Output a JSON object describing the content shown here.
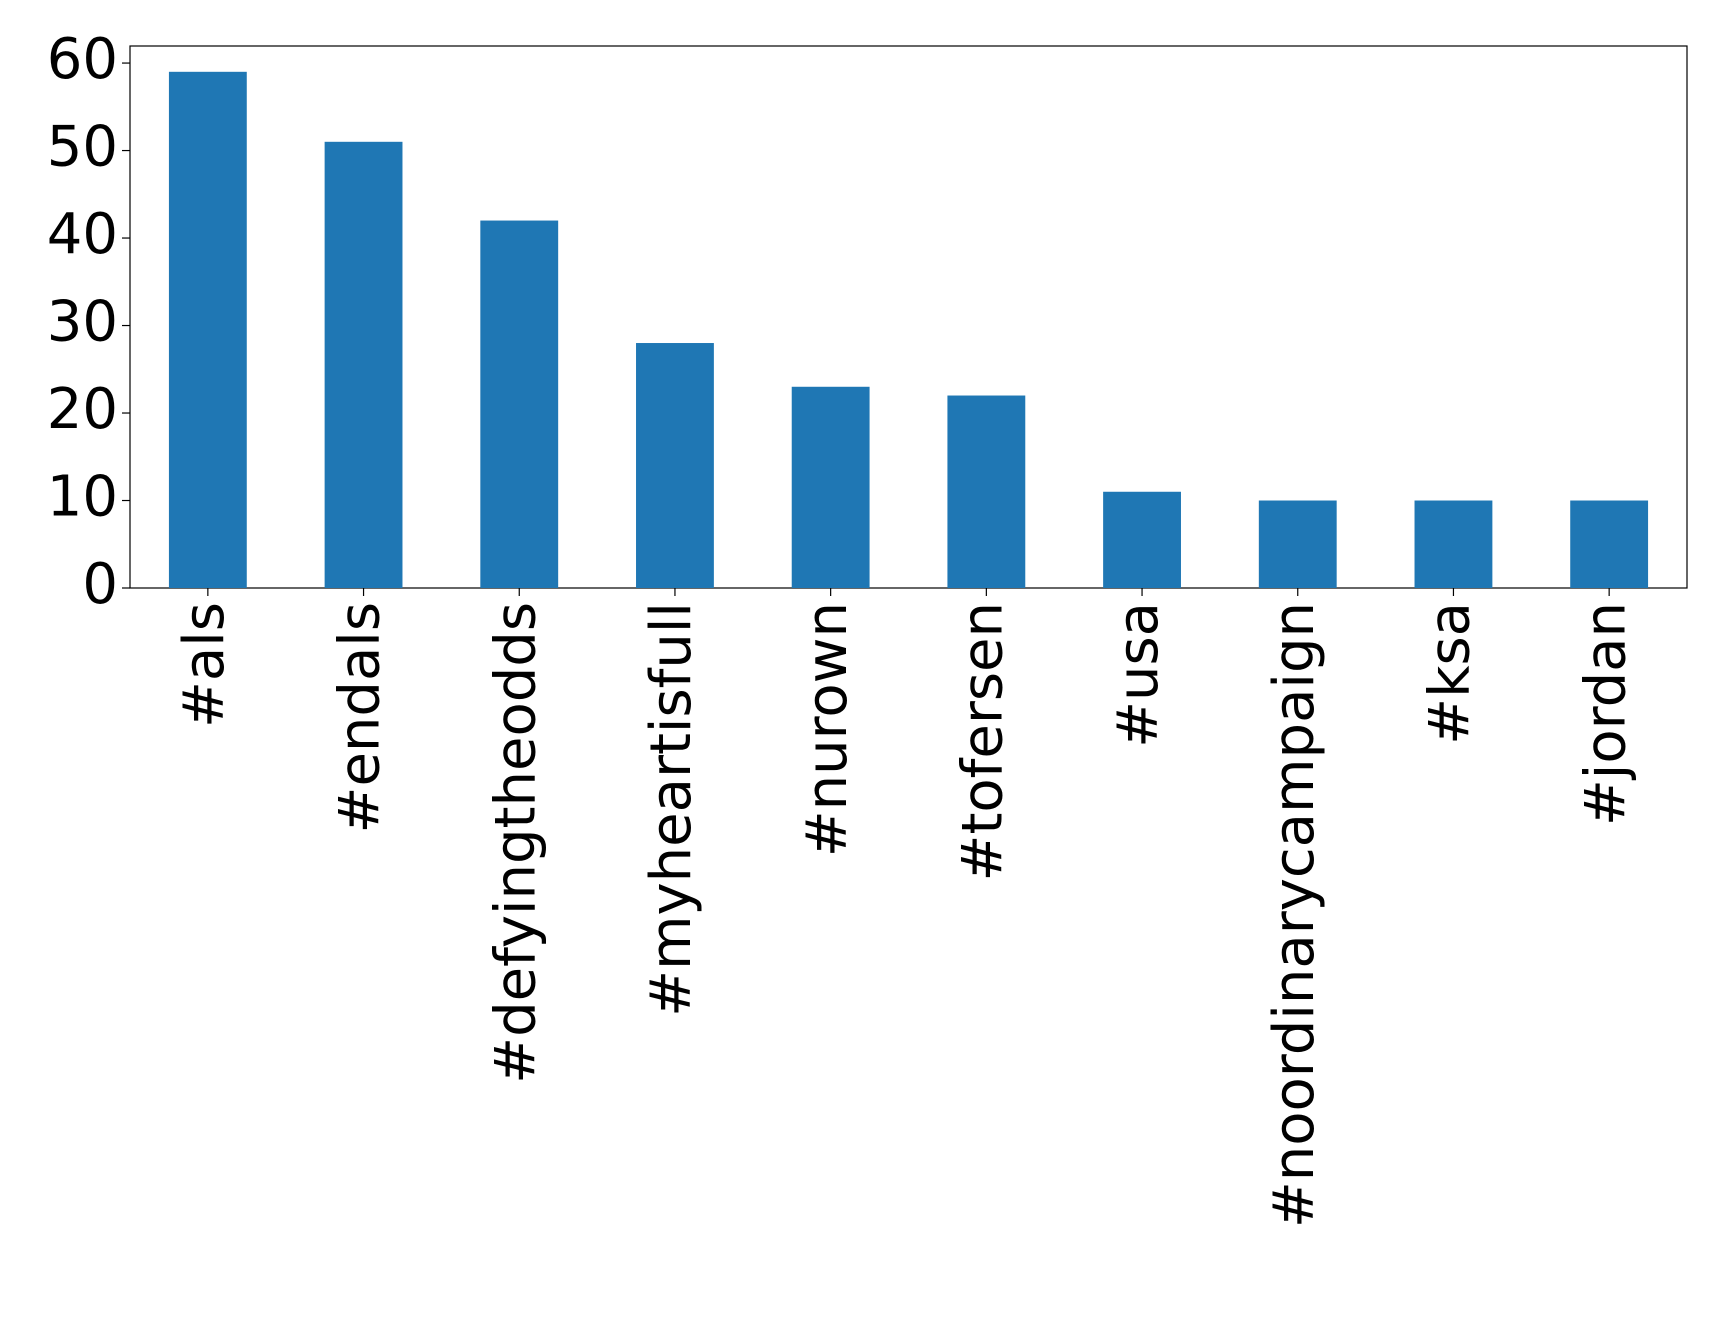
{
  "chart_data": {
    "type": "bar",
    "categories": [
      "#als",
      "#endals",
      "#defyingtheodds",
      "#myheartisfull",
      "#nurown",
      "#tofersen",
      "#usa",
      "#noordinarycampaign",
      "#ksa",
      "#jordan"
    ],
    "values": [
      59,
      51,
      42,
      28,
      23,
      22,
      11,
      10,
      10,
      10
    ],
    "color": "#1f77b4",
    "ylim": [
      0,
      61.95
    ],
    "yticks": [
      0,
      10,
      20,
      30,
      40,
      50,
      60
    ],
    "grid": false
  }
}
